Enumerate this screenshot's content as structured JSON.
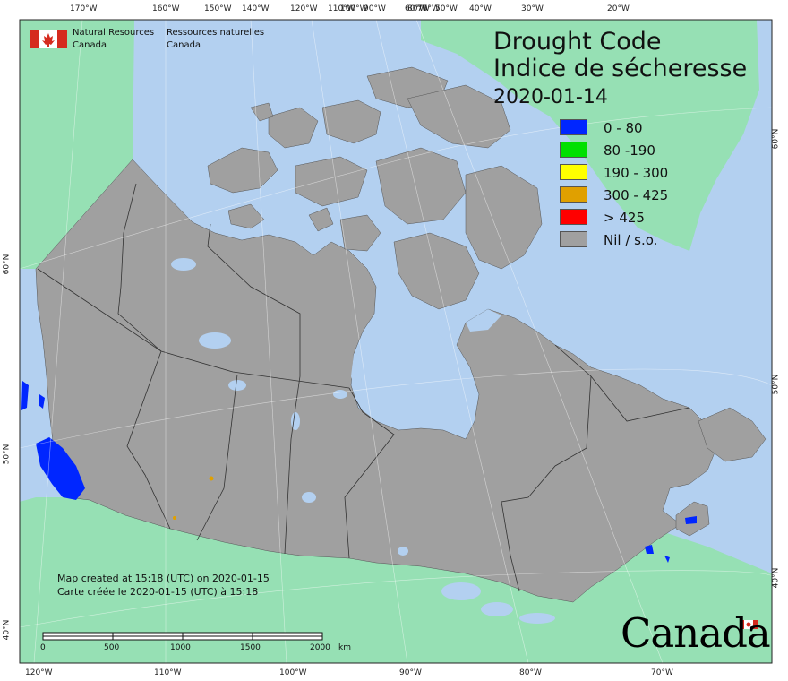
{
  "title": {
    "line1": "Drought Code",
    "line2": "Indice de sécheresse",
    "date": "2020-01-14"
  },
  "legend": [
    {
      "label": "0 - 80",
      "color": "#0026ff"
    },
    {
      "label": "80 -190",
      "color": "#00e000"
    },
    {
      "label": "190 - 300",
      "color": "#ffff00"
    },
    {
      "label": "300 - 425",
      "color": "#e0a000"
    },
    {
      "label": "> 425",
      "color": "#ff0000"
    },
    {
      "label": "Nil / s.o.",
      "color": "#a0a0a0"
    }
  ],
  "agency": {
    "english_line1": "Natural Resources",
    "english_line2": "Canada",
    "french_line1": "Ressources naturelles",
    "french_line2": "Canada"
  },
  "credit": {
    "english": "Map created at 15:18 (UTC) on 2020-01-15",
    "french": "Carte créée le 2020-01-15 (UTC) à 15:18"
  },
  "wordmark": "Canada",
  "scale_bar": {
    "labels": [
      "0",
      "500",
      "1000",
      "1500",
      "2000"
    ],
    "unit": "km"
  },
  "graticule": {
    "top_longitudes": [
      "170°W",
      "160°W",
      "150°W",
      "140°W",
      "120°W",
      "110°W",
      "100°W",
      "90°W",
      "80°W",
      "70°W",
      "60°W",
      "50°W",
      "40°W",
      "30°W",
      "20°W"
    ],
    "bottom_longitudes": [
      "120°W",
      "110°W",
      "100°W",
      "90°W",
      "80°W",
      "70°W"
    ],
    "left_latitudes": [
      "60°N",
      "50°N",
      "40°N"
    ],
    "right_latitudes": [
      "60°N",
      "50°N",
      "40°N"
    ]
  },
  "colors": {
    "ocean": "#b3d0f0",
    "land_other": "#96e0b4",
    "canada_nil": "#a0a0a0",
    "lakes": "#b3d0f0",
    "borders": "#333333"
  }
}
